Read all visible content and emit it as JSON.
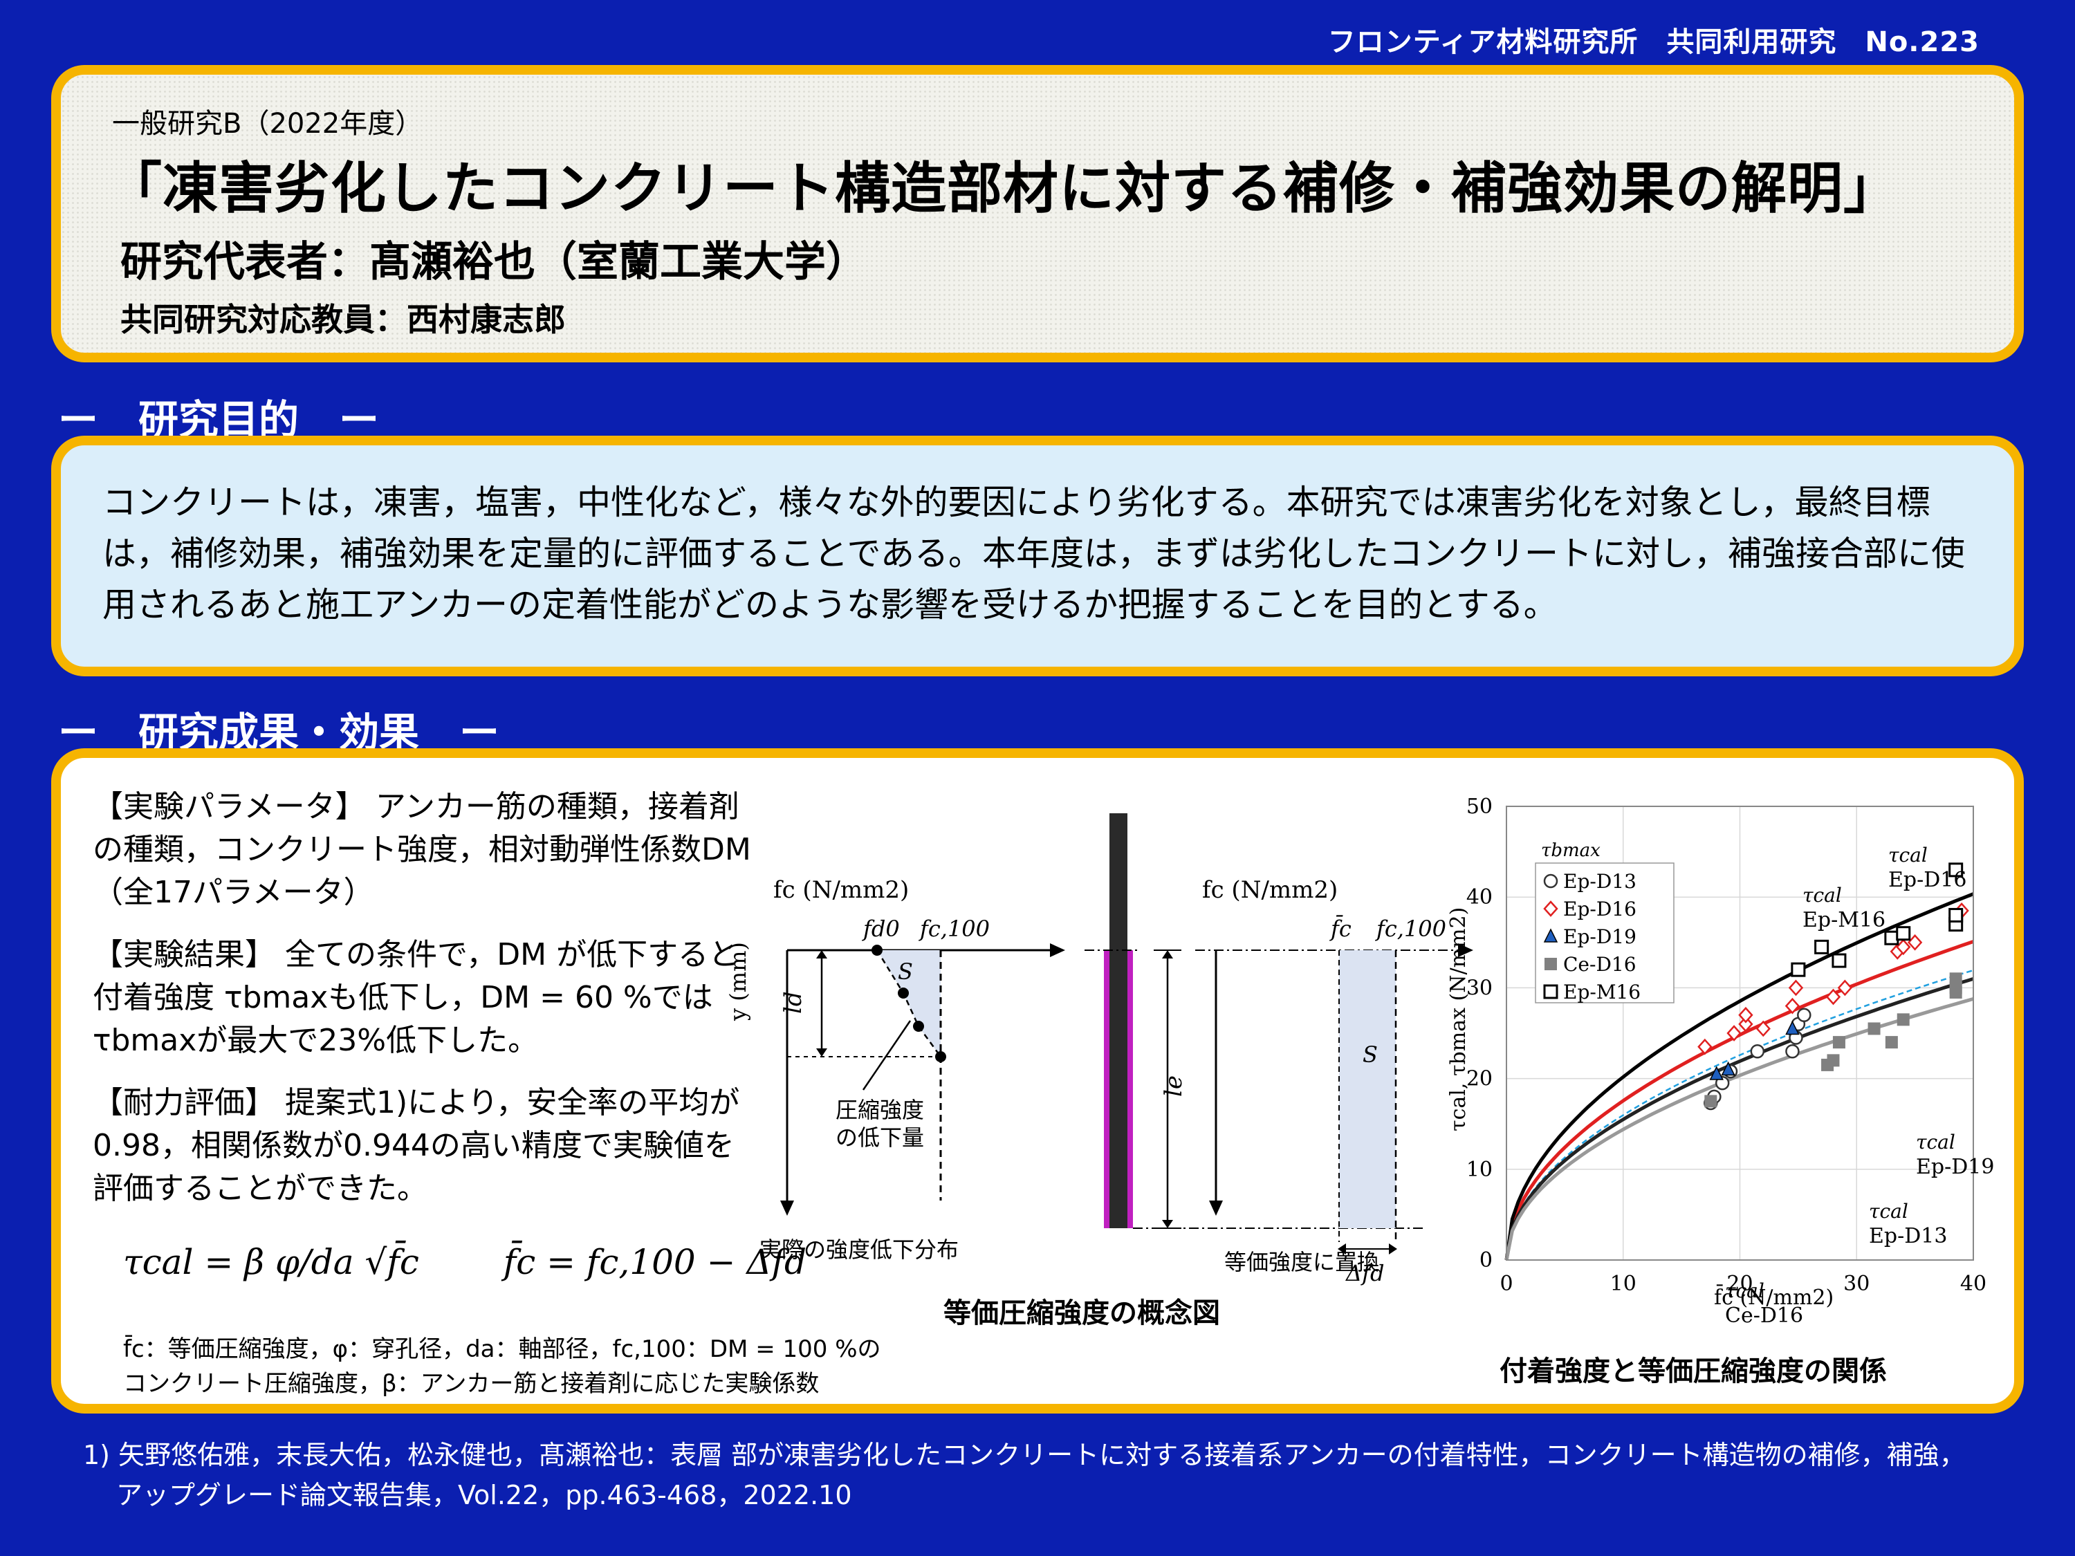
{
  "header": {
    "text": "フロンティア材料研究所　共同利用研究　No.223"
  },
  "title_block": {
    "category": "一般研究B（2022年度）",
    "title": "「凍害劣化したコンクリート構造部材に対する補修・補強効果の解明」",
    "pi": "研究代表者：髙瀬裕也（室蘭工業大学）",
    "faculty": "共同研究対応教員：西村康志郎"
  },
  "sections": {
    "purpose": "ー　研究目的　ー",
    "results": "ー　研究成果・効果　ー"
  },
  "purpose_text": "コンクリートは，凍害，塩害，中性化など，様々な外的要因により劣化する。本研究では凍害劣化を対象とし，最終目標は，補修効果，補強効果を定量的に評価することである。本年度は，まずは劣化したコンクリートに対し，補強接合部に使用されるあと施工アンカーの定着性能がどのような影響を受けるか把握することを目的とする。",
  "results": {
    "param_head": "【実験パラメータ】",
    "param_text": "アンカー筋の種類，接着剤の種類，コンクリート強度，相対動弾性係数DM（全17パラメータ）",
    "exp_head": "【実験結果】",
    "exp_text": "全ての条件で，DM が低下すると付着強度 τbmaxも低下し，DM = 60 %では τbmaxが最大で23%低下した。",
    "eval_head": "【耐力評価】",
    "eval_text": "提案式1)により，安全率の平均が0.98，相関係数が0.944の高い精度で実験値を評価することができた。",
    "formula1": "τcal = β φ/da √f̄c",
    "formula2": "f̄c = fc,100 − Δfd",
    "note1": "f̄c：等価圧縮強度，φ：穿孔径，da：軸部径，fc,100：DM = 100 %の",
    "note2": "コンクリート圧縮強度，β：アンカー筋と接着剤に応じた実験係数"
  },
  "diagram": {
    "left_axis": "fc (N/mm2)",
    "fd0": "fd0",
    "fc100": "fc,100",
    "y_axis": "y (mm)",
    "ld": "ld",
    "S": "S",
    "reduction": "圧縮強度",
    "reduction2": "の低下量",
    "left_caption": "実際の強度低下分布",
    "le": "le",
    "right_axis": "fc (N/mm2)",
    "fcbar": "f̄c",
    "fc100b": "fc,100",
    "S2": "S",
    "dfd": "Δfd",
    "right_caption": "等価強度に置換",
    "title": "等価圧縮強度の概念図"
  },
  "chart_data": {
    "type": "scatter",
    "title": "付着強度と等価圧縮強度の関係",
    "xlabel": "f̄c (N/mm2)",
    "ylabel": "τcal, τbmax (N/mm2)",
    "xlim": [
      0,
      40
    ],
    "ylim": [
      0,
      50
    ],
    "xticks": [
      0,
      10,
      20,
      30,
      40
    ],
    "yticks": [
      0,
      10,
      20,
      30,
      40,
      50
    ],
    "legend_title": "τbmax",
    "legend_position": "top-left",
    "grid": true,
    "series": [
      {
        "name": "Ep-D13",
        "marker": "circle",
        "color": "#333333",
        "points": [
          [
            17.5,
            17.3
          ],
          [
            17.8,
            18.0
          ],
          [
            18.5,
            19.5
          ],
          [
            19.2,
            20.8
          ],
          [
            21.5,
            23.0
          ],
          [
            24.5,
            23.0
          ],
          [
            24.8,
            24.5
          ],
          [
            25.0,
            26.0
          ],
          [
            25.5,
            27.0
          ]
        ]
      },
      {
        "name": "Ep-D16",
        "marker": "diamond",
        "color": "#e02020",
        "points": [
          [
            17.0,
            23.5
          ],
          [
            19.5,
            25.0
          ],
          [
            20.5,
            26.0
          ],
          [
            20.5,
            27.0
          ],
          [
            22.0,
            25.5
          ],
          [
            24.5,
            28.0
          ],
          [
            24.8,
            30.0
          ],
          [
            28.0,
            29.0
          ],
          [
            29.0,
            30.0
          ],
          [
            33.5,
            34.0
          ],
          [
            34.0,
            34.5
          ],
          [
            35.0,
            35.0
          ],
          [
            39.0,
            38.5
          ]
        ]
      },
      {
        "name": "Ep-D19",
        "marker": "triangle",
        "color": "#1f5fbf",
        "points": [
          [
            18.0,
            20.5
          ],
          [
            19.0,
            21.0
          ],
          [
            24.5,
            25.5
          ]
        ]
      },
      {
        "name": "Ce-D16",
        "marker": "square-filled",
        "color": "#808080",
        "points": [
          [
            17.5,
            17.5
          ],
          [
            27.5,
            21.5
          ],
          [
            28.0,
            22.0
          ],
          [
            28.5,
            24.0
          ],
          [
            31.5,
            25.5
          ],
          [
            33.0,
            24.0
          ],
          [
            34.0,
            26.5
          ],
          [
            38.5,
            29.5
          ],
          [
            38.5,
            30.0
          ],
          [
            38.5,
            31.0
          ]
        ]
      },
      {
        "name": "Ep-M16",
        "marker": "square-open",
        "color": "#000000",
        "points": [
          [
            25.0,
            32.0
          ],
          [
            27.0,
            34.5
          ],
          [
            28.5,
            33.0
          ],
          [
            33.0,
            35.5
          ],
          [
            34.0,
            36.0
          ],
          [
            38.5,
            37.0
          ],
          [
            38.5,
            38.0
          ],
          [
            38.5,
            43.0
          ]
        ]
      }
    ],
    "curves": [
      {
        "name": "Ep-D16",
        "color": "#e02020",
        "coef": 5.55
      },
      {
        "name": "Ep-M16",
        "color": "#000000",
        "coef": 6.38
      },
      {
        "name": "Ep-D19",
        "color": "#1f9fdf",
        "coef": 5.05
      },
      {
        "name": "Ep-D13",
        "color": "#222222",
        "coef": 4.9
      },
      {
        "name": "Ce-D16",
        "color": "#999999",
        "coef": 4.55
      }
    ],
    "annotations": [
      {
        "text": "τcal",
        "sub": "Ep-D16"
      },
      {
        "text": "τcal",
        "sub": "Ep-M16"
      },
      {
        "text": "τcal",
        "sub": "Ep-D19"
      },
      {
        "text": "τcal",
        "sub": "Ep-D13"
      },
      {
        "text": "τcal",
        "sub": "Ce-D16"
      }
    ]
  },
  "footer": {
    "ref1": "1) 矢野悠佑雅，末長大佑，松永健也，髙瀬裕也：表層 部が凍害劣化したコンクリートに対する接着系アンカーの付着特性，コンクリート構造物の補修，補強，",
    "ref2": "アップグレード論文報告集，Vol.22，pp.463-468，2022.10"
  }
}
